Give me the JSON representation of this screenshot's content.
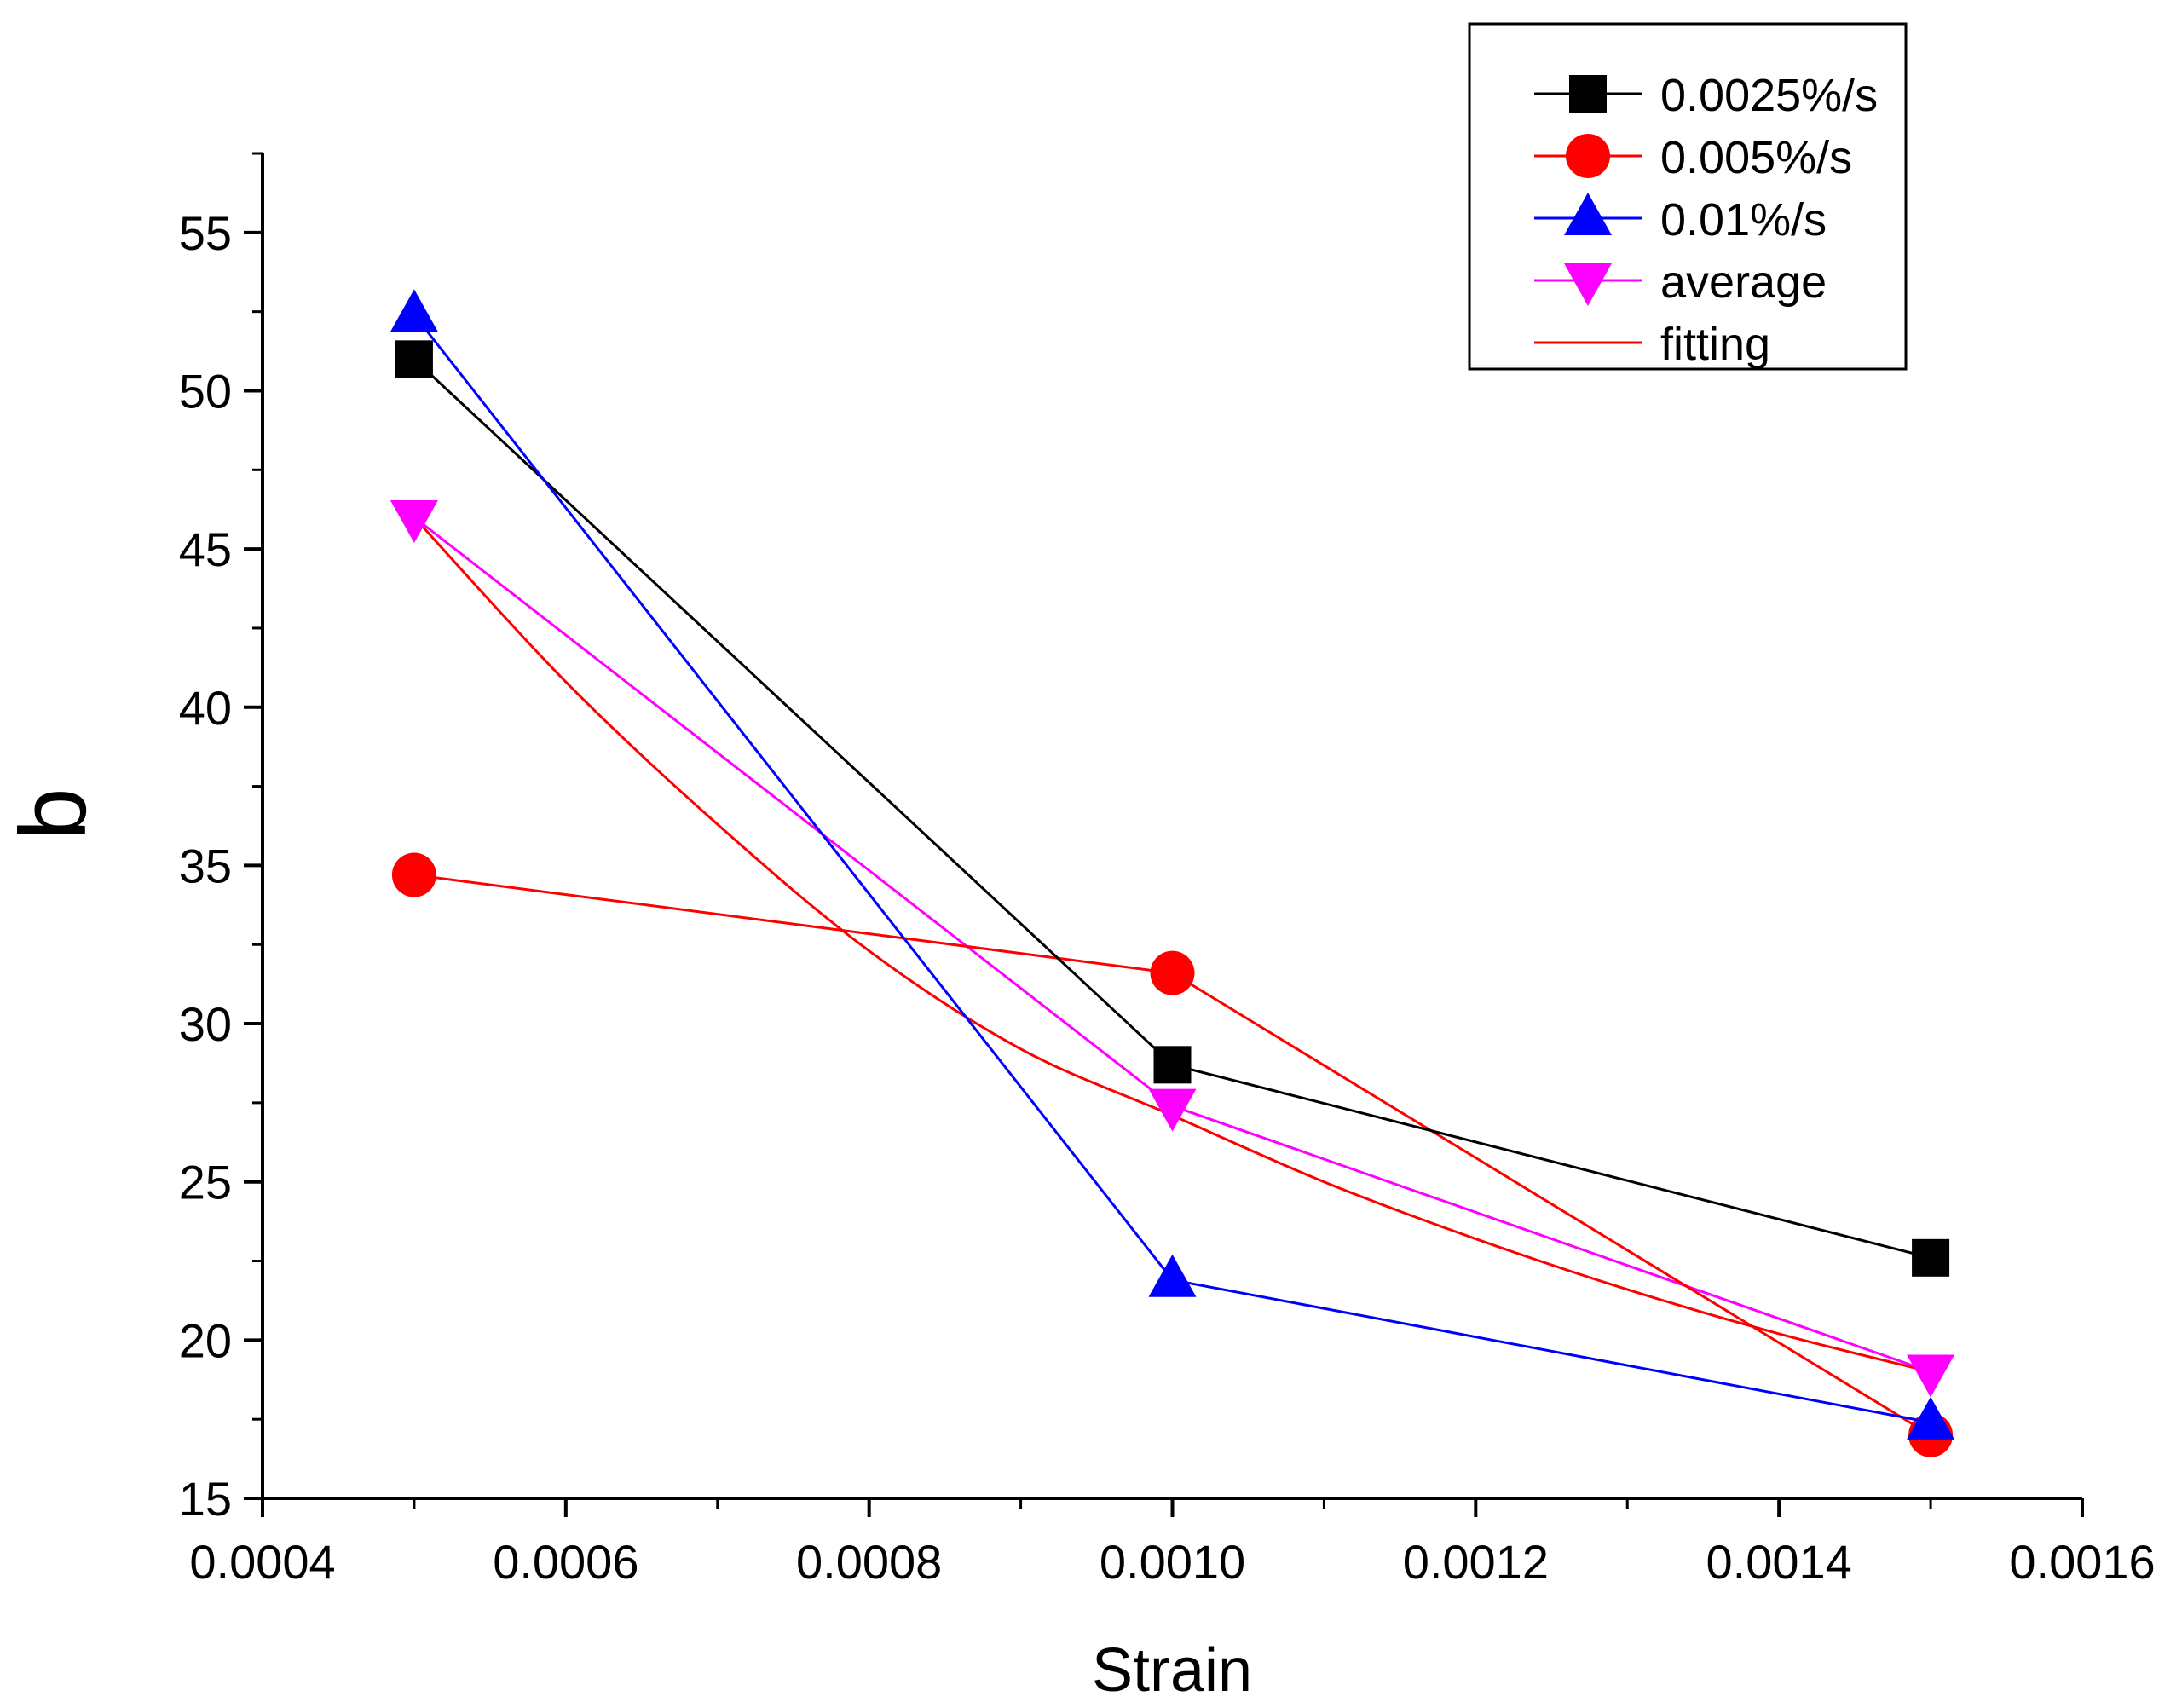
{
  "chart_data": {
    "type": "line",
    "title": "",
    "xlabel": "Strain",
    "ylabel": "b",
    "xlim": [
      0.0004,
      0.0016
    ],
    "ylim": [
      15,
      57.5
    ],
    "xticks": [
      0.0004,
      0.0006,
      0.0008,
      0.001,
      0.0012,
      0.0014,
      0.0016
    ],
    "xtick_labels": [
      "0.0004",
      "0.0006",
      "0.0008",
      "0.0010",
      "0.0012",
      "0.0014",
      "0.0016"
    ],
    "yticks": [
      15,
      20,
      25,
      30,
      35,
      40,
      45,
      50,
      55
    ],
    "ytick_labels": [
      "15",
      "20",
      "25",
      "30",
      "35",
      "40",
      "45",
      "50",
      "55"
    ],
    "grid": false,
    "legend_position": "top-right",
    "series": [
      {
        "name": "0.0025%/s",
        "color": "#000000",
        "marker": "square",
        "x": [
          0.0005,
          0.001,
          0.0015
        ],
        "y": [
          51.0,
          28.7,
          22.6
        ]
      },
      {
        "name": "0.005%/s",
        "color": "#ff0000",
        "marker": "circle",
        "x": [
          0.0005,
          0.001,
          0.0015
        ],
        "y": [
          34.7,
          31.6,
          17.0
        ]
      },
      {
        "name": "0.01%/s",
        "color": "#0000ff",
        "marker": "triangle-up",
        "x": [
          0.0005,
          0.001,
          0.0015
        ],
        "y": [
          52.4,
          21.9,
          17.4
        ]
      },
      {
        "name": "average",
        "color": "#ff00ff",
        "marker": "triangle-down",
        "x": [
          0.0005,
          0.001,
          0.0015
        ],
        "y": [
          46.0,
          27.4,
          19.0
        ]
      },
      {
        "name": "fitting",
        "color": "#ff0000",
        "marker": "none",
        "x": [
          0.0005,
          0.0006,
          0.0007,
          0.0008,
          0.0009,
          0.001,
          0.0011,
          0.0012,
          0.0013,
          0.0014,
          0.0015
        ],
        "y": [
          46.0,
          40.8,
          36.3,
          32.3,
          29.2,
          27.1,
          25.0,
          23.2,
          21.6,
          20.2,
          19.0
        ]
      }
    ]
  }
}
